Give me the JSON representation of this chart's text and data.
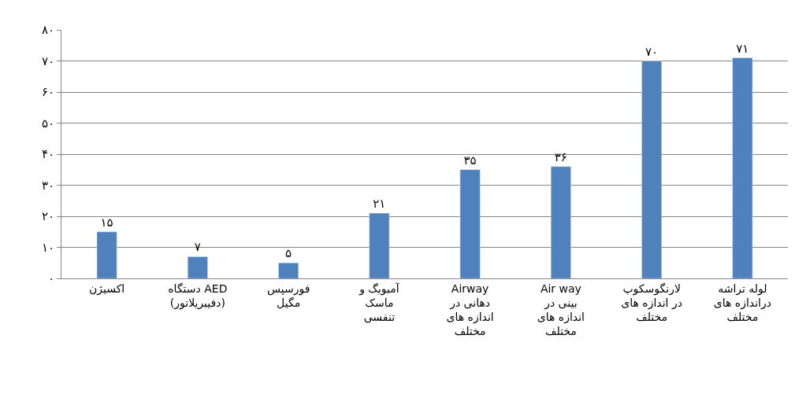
{
  "chart_data": {
    "type": "bar",
    "categories": [
      "اکسیژن",
      "دستگاه AED\n(دفیبریلاتور)",
      "فورسپس\nمگیل",
      "آمبوبگ و\nماسک\nتنفسی",
      "Airway\nدهانی در\nاندازه های\nمختلف",
      "Air way\nبینی در\nاندازه های\nمختلف",
      "لارنگوسکوپ\nدر اندازه های\nمختلف",
      "لوله تراشه\nدراندازه های\nمختلف"
    ],
    "values": [
      15,
      7,
      5,
      21,
      35,
      36,
      70,
      71
    ],
    "value_labels": [
      "۱۵",
      "۷",
      "۵",
      "۲۱",
      "۳۵",
      "۳۶",
      "۷۰",
      "۷۱"
    ],
    "color": "#4f81bd",
    "ylim": [
      0,
      80
    ],
    "yticks": [
      {
        "value": 0,
        "label": "۰"
      },
      {
        "value": 10,
        "label": "۱۰"
      },
      {
        "value": 20,
        "label": "۲۰"
      },
      {
        "value": 30,
        "label": "۳۰"
      },
      {
        "value": 40,
        "label": "۴۰"
      },
      {
        "value": 50,
        "label": "۵۰"
      },
      {
        "value": 60,
        "label": "۶۰"
      },
      {
        "value": 70,
        "label": "۷۰"
      },
      {
        "value": 80,
        "label": "۸۰"
      }
    ],
    "grid": "y",
    "legend": false
  }
}
